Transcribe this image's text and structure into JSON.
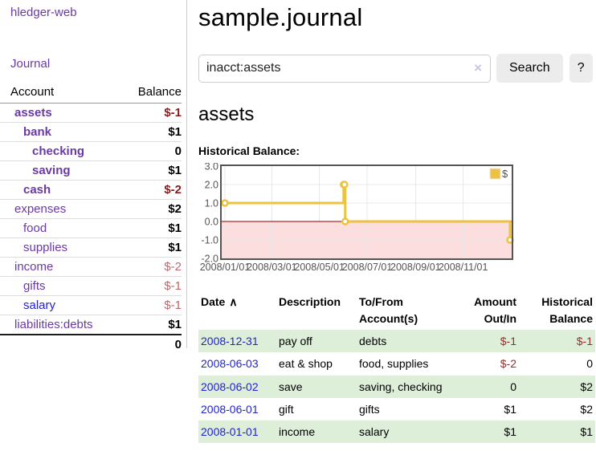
{
  "colors": {
    "link_purple": "#6a3aa2",
    "link_blue": "#2323cc",
    "negative_strong": "#8b1a1a",
    "negative_soft": "#b96a6a",
    "negative_table": "#952d2d",
    "row_stripe_green": "#ddeed9",
    "chart_series_yellow": "#edc240"
  },
  "sidebar": {
    "brand": "hledger-web",
    "journal_link": "Journal",
    "accounts_table": {
      "headers": {
        "account": "Account",
        "balance": "Balance"
      },
      "rows": [
        {
          "name": "assets",
          "indent": 1,
          "bold": true,
          "balance": "$-1",
          "balance_style": "strong-neg"
        },
        {
          "name": "bank",
          "indent": 2,
          "bold": true,
          "balance": "$1",
          "balance_style": ""
        },
        {
          "name": "checking",
          "indent": 3,
          "bold": true,
          "balance": "0",
          "balance_style": ""
        },
        {
          "name": "saving",
          "indent": 3,
          "bold": true,
          "balance": "$1",
          "balance_style": ""
        },
        {
          "name": "cash",
          "indent": 2,
          "bold": true,
          "balance": "$-2",
          "balance_style": "strong-neg"
        },
        {
          "name": "expenses",
          "indent": 1,
          "bold": false,
          "balance": "$2",
          "balance_style": ""
        },
        {
          "name": "food",
          "indent": 2,
          "bold": false,
          "balance": "$1",
          "balance_style": ""
        },
        {
          "name": "supplies",
          "indent": 2,
          "bold": false,
          "balance": "$1",
          "balance_style": ""
        },
        {
          "name": "income",
          "indent": 1,
          "bold": false,
          "balance": "$-2",
          "balance_style": "soft-neg"
        },
        {
          "name": "gifts",
          "indent": 2,
          "bold": false,
          "balance": "$-1",
          "balance_style": "soft-neg"
        },
        {
          "name": "salary",
          "indent": 2,
          "bold": false,
          "link_color": "blue",
          "balance": "$-1",
          "balance_style": "soft-neg"
        },
        {
          "name": "liabilities:debts",
          "indent": 1,
          "bold": false,
          "balance": "$1",
          "balance_style": ""
        }
      ],
      "total": "0"
    }
  },
  "header": {
    "title": "sample.journal"
  },
  "search": {
    "value": "inacct:assets",
    "clear_icon": "×",
    "button_label": "Search",
    "help_label": "?"
  },
  "account_view": {
    "heading": "assets",
    "chart_label": "Historical Balance:"
  },
  "chart_data": {
    "type": "line",
    "title": "Historical Balance:",
    "x_start": "2008-01-01",
    "x_span_days": 365,
    "ylim": [
      -2,
      3
    ],
    "y_ticks": [
      "3.0",
      "2.0",
      "1.0",
      "0.0",
      "-1.0",
      "-2.0"
    ],
    "x_ticks": [
      {
        "label": "2008/01/01",
        "date": "2008-01-01"
      },
      {
        "label": "2008/03/01",
        "date": "2008-03-01"
      },
      {
        "label": "2008/05/01",
        "date": "2008-05-01"
      },
      {
        "label": "2008/07/01",
        "date": "2008-07-01"
      },
      {
        "label": "2008/09/01",
        "date": "2008-09-01"
      },
      {
        "label": "2008/11/01",
        "date": "2008-11-01"
      }
    ],
    "series": [
      {
        "name": "$",
        "color": "#edc240",
        "step": true,
        "points": [
          {
            "date": "2008-01-01",
            "value": 1
          },
          {
            "date": "2008-06-01",
            "value": 2
          },
          {
            "date": "2008-06-02",
            "value": 2
          },
          {
            "date": "2008-06-03",
            "value": 0
          },
          {
            "date": "2008-12-31",
            "value": -1
          }
        ]
      }
    ],
    "legend": {
      "label": "$",
      "position": "top-right"
    },
    "grid": true,
    "grid_color": "#e8e8e8",
    "border_color": "#545454",
    "axis_text_color": "#545454",
    "zero_line_color": "#8b0000",
    "negative_region_color": "#fcdede"
  },
  "register": {
    "headers": [
      {
        "lines": [
          "Date"
        ],
        "sort_icon": "∧",
        "sortable": true,
        "align": "left"
      },
      {
        "lines": [
          "Description"
        ],
        "align": "left"
      },
      {
        "lines": [
          "To/From",
          "Account(s)"
        ],
        "align": "left"
      },
      {
        "lines": [
          "Amount",
          "Out/In"
        ],
        "align": "right"
      },
      {
        "lines": [
          "Historical",
          "Balance"
        ],
        "align": "right"
      }
    ],
    "rows": [
      {
        "date": "2008-12-31",
        "description": "pay off",
        "accounts": "debts",
        "amount": "$-1",
        "amount_negative": true,
        "balance": "$-1",
        "balance_negative": true
      },
      {
        "date": "2008-06-03",
        "description": "eat & shop",
        "accounts": "food, supplies",
        "amount": "$-2",
        "amount_negative": true,
        "balance": "0",
        "balance_negative": false
      },
      {
        "date": "2008-06-02",
        "description": "save",
        "accounts": "saving, checking",
        "amount": "0",
        "amount_negative": false,
        "balance": "$2",
        "balance_negative": false
      },
      {
        "date": "2008-06-01",
        "description": "gift",
        "accounts": "gifts",
        "amount": "$1",
        "amount_negative": false,
        "balance": "$2",
        "balance_negative": false
      },
      {
        "date": "2008-01-01",
        "description": "income",
        "accounts": "salary",
        "amount": "$1",
        "amount_negative": false,
        "balance": "$1",
        "balance_negative": false
      }
    ]
  }
}
